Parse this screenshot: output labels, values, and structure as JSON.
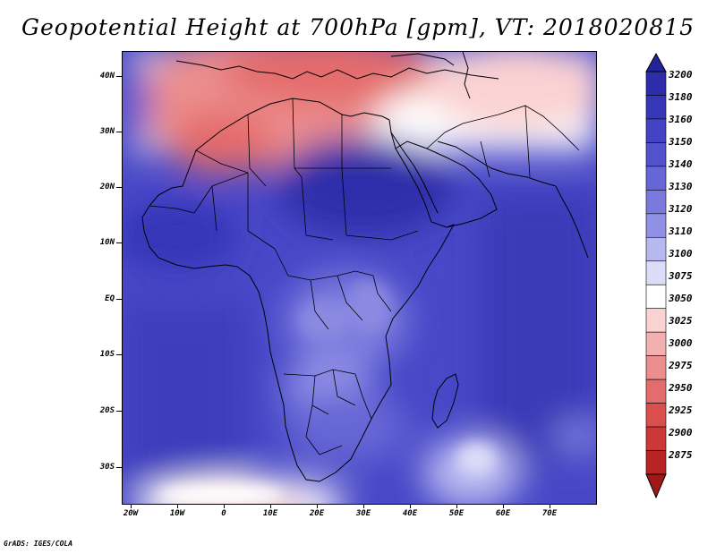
{
  "title": "Geopotential Height at 700hPa [gpm], VT: 2018020815",
  "credit": "GrADS: IGES/COLA",
  "map": {
    "variable": "Geopotential Height",
    "level": "700hPa",
    "units": "gpm",
    "valid_time": "2018020815",
    "lat_labels": [
      "40N",
      "30N",
      "20N",
      "10N",
      "EQ",
      "10S",
      "20S",
      "30S"
    ],
    "lon_labels": [
      "20W",
      "10W",
      "0",
      "10E",
      "20E",
      "30E",
      "40E",
      "50E",
      "60E",
      "70E"
    ],
    "lat_values": [
      40,
      30,
      20,
      10,
      0,
      -10,
      -20,
      -30
    ],
    "lon_values": [
      -20,
      -10,
      0,
      10,
      20,
      30,
      40,
      50,
      60,
      70
    ],
    "lon_range": [
      -22,
      80
    ],
    "lat_range": [
      -37,
      44
    ],
    "ocean_base_color": "#4040c8"
  },
  "colorbar": {
    "levels": [
      "3200",
      "3180",
      "3160",
      "3150",
      "3140",
      "3130",
      "3120",
      "3110",
      "3100",
      "3075",
      "3050",
      "3025",
      "3000",
      "2975",
      "2950",
      "2925",
      "2900",
      "2875"
    ],
    "colors": [
      "#23239a",
      "#2d2daa",
      "#3636b8",
      "#4343c4",
      "#5252cc",
      "#6666d6",
      "#7a7ade",
      "#9090e6",
      "#b8b8f0",
      "#dcdcf8",
      "#ffffff",
      "#fbd2d2",
      "#f4b0b0",
      "#ec8e8e",
      "#e46c6c",
      "#da4e4e",
      "#cc3838",
      "#b82424",
      "#a01818"
    ]
  }
}
